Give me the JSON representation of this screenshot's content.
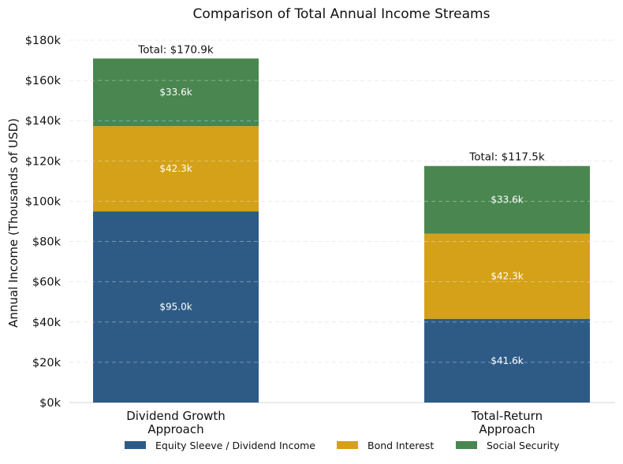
{
  "chart_data": {
    "type": "bar",
    "stacked": true,
    "title": "Comparison of Total Annual Income Streams",
    "xlabel": "",
    "ylabel": "Annual Income (Thousands of USD)",
    "ylim": [
      0,
      180
    ],
    "yticks": [
      0,
      20,
      40,
      60,
      80,
      100,
      120,
      140,
      160,
      180
    ],
    "ytick_labels": [
      "$0k",
      "$20k",
      "$40k",
      "$60k",
      "$80k",
      "$100k",
      "$120k",
      "$140k",
      "$160k",
      "$180k"
    ],
    "grid": "horizontal dashed",
    "legend_placement": "bottom-center",
    "categories": [
      [
        "Dividend Growth",
        "Approach"
      ],
      [
        "Total-Return",
        "Approach"
      ]
    ],
    "series": [
      {
        "name": "Equity Sleeve / Dividend Income",
        "color": "#2e5b86",
        "values": [
          95.0,
          41.6
        ],
        "labels": [
          "$95.0k",
          "$41.6k"
        ]
      },
      {
        "name": "Bond Interest",
        "color": "#d4a118",
        "values": [
          42.3,
          42.3
        ],
        "labels": [
          "$42.3k",
          "$42.3k"
        ]
      },
      {
        "name": "Social Security",
        "color": "#4a8650",
        "values": [
          33.6,
          33.6
        ],
        "labels": [
          "$33.6k",
          "$33.6k"
        ]
      }
    ],
    "totals": [
      170.9,
      117.5
    ],
    "total_labels": [
      "Total: $170.9k",
      "Total: $117.5k"
    ]
  }
}
